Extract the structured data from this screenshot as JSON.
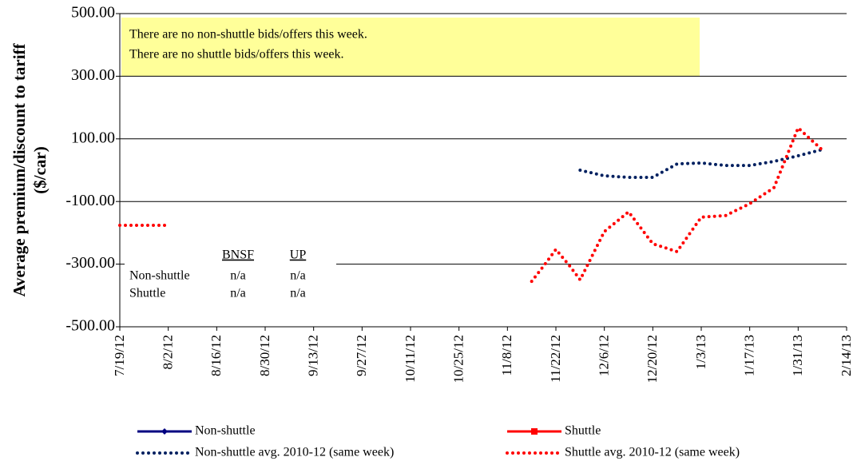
{
  "chart_data": {
    "type": "line",
    "y_label": [
      "Average premium/discount to tariff",
      "($/car)"
    ],
    "annotations": [
      "There are no non-shuttle bids/offers this week.",
      "There are no shuttle bids/offers this week."
    ],
    "table": {
      "header": [
        "BNSF",
        "UP"
      ],
      "rows": [
        [
          "Non-shuttle",
          "n/a",
          "n/a"
        ],
        [
          "Shuttle",
          "n/a",
          "n/a"
        ]
      ]
    },
    "ylim": [
      -500,
      500
    ],
    "yticks": [
      {
        "value": -500,
        "label": "-500.00"
      },
      {
        "value": -300,
        "label": "-300.00"
      },
      {
        "value": -100,
        "label": "-100.00"
      },
      {
        "value": 100,
        "label": "100.00"
      },
      {
        "value": 300,
        "label": "300.00"
      },
      {
        "value": 500,
        "label": "500.00"
      }
    ],
    "xlim": [
      "2012-07-19",
      "2013-02-14"
    ],
    "xticks": [
      {
        "value": "2012-07-19",
        "label": "7/19/12"
      },
      {
        "value": "2012-08-02",
        "label": "8/2/12"
      },
      {
        "value": "2012-08-16",
        "label": "8/16/12"
      },
      {
        "value": "2012-08-30",
        "label": "8/30/12"
      },
      {
        "value": "2012-09-13",
        "label": "9/13/12"
      },
      {
        "value": "2012-09-27",
        "label": "9/27/12"
      },
      {
        "value": "2012-10-11",
        "label": "10/11/12"
      },
      {
        "value": "2012-10-25",
        "label": "10/25/12"
      },
      {
        "value": "2012-11-08",
        "label": "11/8/12"
      },
      {
        "value": "2012-11-22",
        "label": "11/22/12"
      },
      {
        "value": "2012-12-06",
        "label": "12/6/12"
      },
      {
        "value": "2012-12-20",
        "label": "12/20/12"
      },
      {
        "value": "2013-01-03",
        "label": "1/3/13"
      },
      {
        "value": "2013-01-17",
        "label": "1/17/13"
      },
      {
        "value": "2013-01-31",
        "label": "1/31/13"
      },
      {
        "value": "2013-02-14",
        "label": "2/14/13"
      }
    ],
    "grid": true,
    "series": [
      {
        "name": "Non-shuttle",
        "color": "#000080",
        "style": "solid",
        "marker": "diamond",
        "x": [],
        "values": []
      },
      {
        "name": "Shuttle",
        "color": "#ff0000",
        "style": "solid",
        "marker": "square",
        "x": [],
        "values": []
      },
      {
        "name": "Non-shuttle avg. 2010-12 (same week)",
        "color": "#002060",
        "style": "dotted",
        "x": [
          "2012-11-29",
          "2012-12-06",
          "2012-12-13",
          "2012-12-20",
          "2012-12-27",
          "2013-01-03",
          "2013-01-10",
          "2013-01-17",
          "2013-01-24",
          "2013-01-31",
          "2013-02-07"
        ],
        "values": [
          0,
          -18,
          -23,
          -23,
          20,
          23,
          15,
          15,
          28,
          46,
          66
        ]
      },
      {
        "name": "Shuttle avg. 2010-12 (same week)",
        "color": "#ff0000",
        "style": "dotted",
        "x": [
          "2012-07-19",
          "2012-07-26",
          "2012-08-02",
          "2012-08-09",
          "2012-11-15",
          "2012-11-19",
          "2012-11-22",
          "2012-11-26",
          "2012-11-29",
          "2012-12-06",
          "2012-12-13",
          "2012-12-20",
          "2012-12-27",
          "2013-01-03",
          "2013-01-10",
          "2013-01-17",
          "2013-01-24",
          "2013-01-31",
          "2013-02-07"
        ],
        "values": [
          -176,
          -176,
          -176,
          null,
          -355,
          -298,
          -253,
          -306,
          -350,
          -196,
          -133,
          -235,
          -260,
          -150,
          -145,
          -107,
          -56,
          135,
          64
        ]
      }
    ]
  }
}
